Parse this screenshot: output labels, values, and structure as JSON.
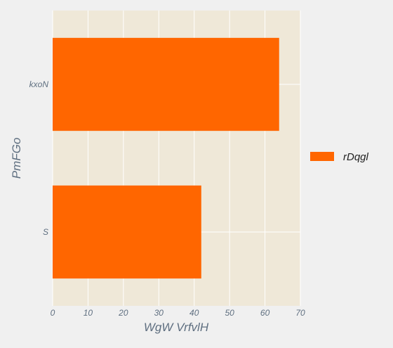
{
  "chart_data": {
    "type": "bar",
    "orientation": "horizontal",
    "title": "",
    "xlabel": "WgW  VrfvlH",
    "ylabel": "PmFGo",
    "categories": [
      "kxoN",
      "S"
    ],
    "series": [
      {
        "name": "rDqgl",
        "values": [
          64,
          42
        ],
        "color": "#ff6600"
      }
    ],
    "xlim": [
      0,
      70
    ],
    "xticks": [
      0,
      10,
      20,
      30,
      40,
      50,
      60,
      70
    ],
    "grid": true,
    "legend": "right",
    "colors": {
      "plot_background": "#efe8d8",
      "page_background": "#f0f0f0",
      "grid": "#ffffff",
      "text": "#5f6f80"
    }
  }
}
